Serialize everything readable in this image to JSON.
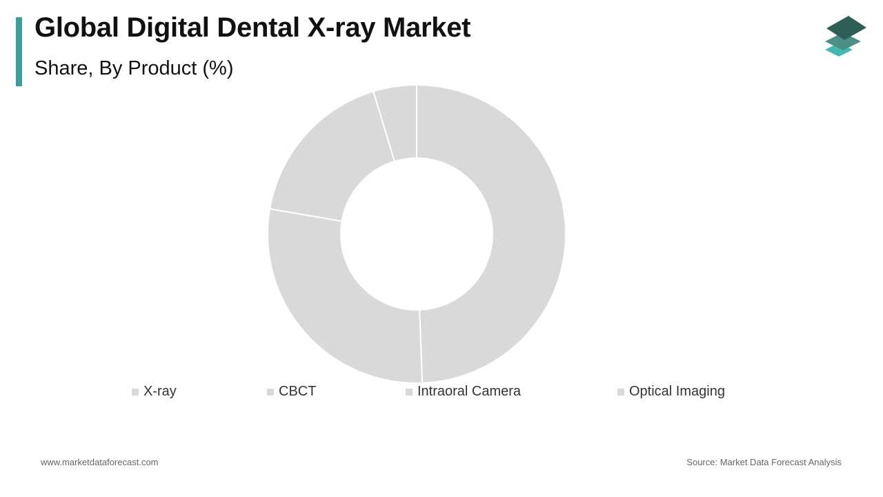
{
  "header": {
    "title": "Global Digital Dental X-ray Market",
    "subtitle": "Share, By Product (%)",
    "accent_color": "#3a9e9a"
  },
  "logo": {
    "icon": "layered-squares-logo",
    "colors": [
      "#2e5f57",
      "#4c8f84",
      "#43b8b0"
    ]
  },
  "chart_data": {
    "type": "pie",
    "variant": "donut",
    "title": "Global Digital Dental X-ray Market",
    "subtitle": "Share, By Product (%)",
    "categories": [
      "X-ray",
      "CBCT",
      "Intraoral Camera",
      "Optical Imaging"
    ],
    "values": [
      49.4,
      28.3,
      17.6,
      4.7
    ],
    "slice_color": "#d9d9d9",
    "legend_placement": "bottom",
    "grid": false
  },
  "legend": {
    "items": [
      {
        "label": "X-ray",
        "color": "#d9d9d9"
      },
      {
        "label": "CBCT",
        "color": "#d9d9d9"
      },
      {
        "label": "Intraoral Camera",
        "color": "#d9d9d9"
      },
      {
        "label": "Optical Imaging",
        "color": "#d9d9d9"
      }
    ]
  },
  "footer": {
    "website": "www.marketdataforecast.com",
    "source": "Source: Market Data Forecast Analysis"
  }
}
